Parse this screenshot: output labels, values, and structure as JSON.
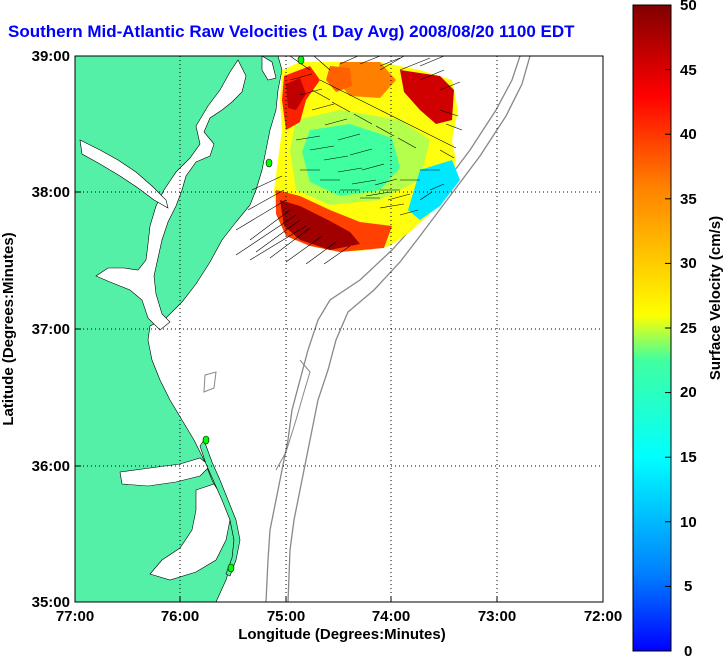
{
  "title": "Southern Mid-Atlantic Raw Velocities (1 Day Avg) 2008/08/20 1100 EDT",
  "map": {
    "xlabel": "Longitude (Degrees:Minutes)",
    "ylabel": "Latitude (Degrees:Minutes)",
    "x_ticks": [
      "77:00",
      "76:00",
      "75:00",
      "74:00",
      "73:00",
      "72:00"
    ],
    "y_ticks": [
      "39:00",
      "38:00",
      "37:00",
      "36:00",
      "35:00"
    ],
    "land_color": "#55f0a8",
    "grid": "dotted"
  },
  "colorbar": {
    "label": "Surface Velocity (cm/s)",
    "ticks": [
      "50",
      "45",
      "40",
      "35",
      "30",
      "25",
      "20",
      "15",
      "10",
      "5",
      "0"
    ],
    "range": [
      0,
      50
    ],
    "colormap": "jet"
  }
}
